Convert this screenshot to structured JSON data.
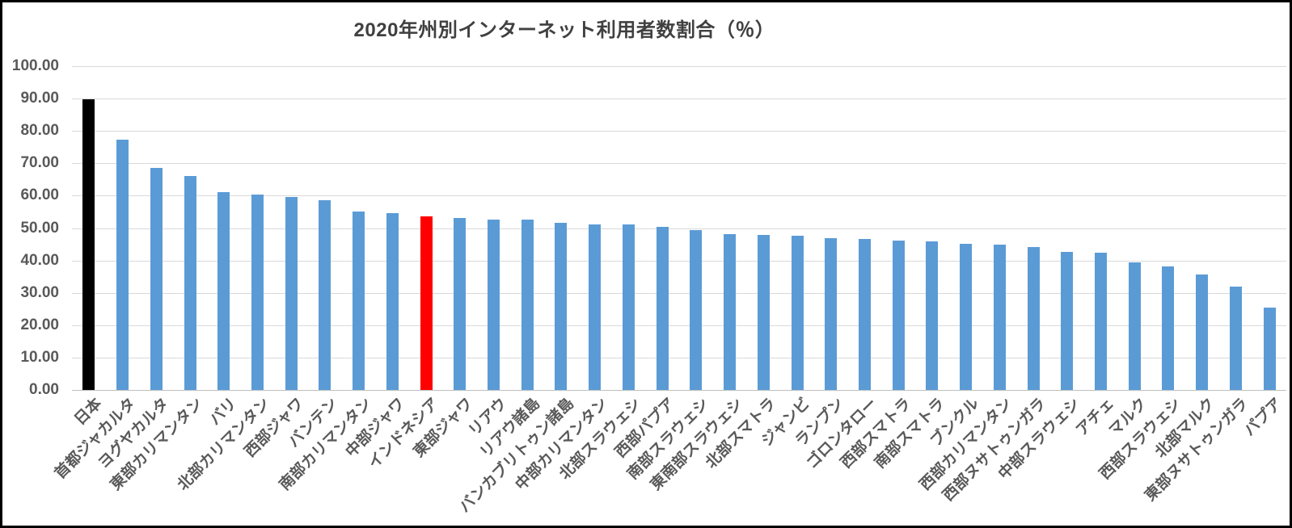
{
  "title": "2020年州別インターネット利用者数割合（％）",
  "chart_data": {
    "type": "bar",
    "title": "2020年州別インターネット利用者数割合（％）",
    "xlabel": "",
    "ylabel": "",
    "ylim": [
      0,
      100
    ],
    "ytick_step": 10,
    "ytick_decimals": 2,
    "grid": true,
    "legend": "none",
    "categories": [
      "日本",
      "首都ジャカルタ",
      "ヨグヤカルタ",
      "東部カリマンタン",
      "バリ",
      "北部カリマンタン",
      "西部ジャワ",
      "バンテン",
      "南部カリマンタン",
      "中部ジャワ",
      "インドネシア",
      "東部ジャワ",
      "リアウ",
      "リアウ諸島",
      "バンカブリトゥン諸島",
      "中部カリマンタン",
      "北部スラウェシ",
      "西部パプア",
      "南部スラウェシ",
      "東南部スラウェシ",
      "北部スマトラ",
      "ジャンビ",
      "ランプン",
      "ゴロンタロー",
      "西部スマトラ",
      "南部スマトラ",
      "ブンクル",
      "西部カリマンタン",
      "西部ヌサトゥンガラ",
      "中部スラウェシ",
      "アチェ",
      "マルク",
      "西部スラウェシ",
      "北部マルク",
      "東部ヌサトゥンガラ",
      "パプア"
    ],
    "values": [
      89.8,
      77.4,
      68.5,
      66.1,
      61.0,
      60.3,
      59.7,
      58.5,
      55.2,
      54.7,
      53.7,
      53.2,
      52.7,
      52.6,
      51.6,
      51.2,
      51.0,
      50.3,
      49.4,
      48.2,
      47.9,
      47.6,
      46.9,
      46.6,
      46.2,
      45.9,
      45.2,
      44.9,
      44.2,
      42.6,
      42.3,
      39.3,
      38.1,
      35.7,
      31.9,
      25.4
    ],
    "default_bar_color": "#5B9BD5",
    "color_overrides": {
      "0": "#000000",
      "10": "#FF0000"
    }
  },
  "colors": {
    "accent_blue": "#5B9BD5",
    "highlight_red": "#FF0000",
    "highlight_black": "#000000",
    "gridline": "#D9D9D9",
    "axis_line": "#BFBFBF",
    "title_text": "#404040",
    "axis_text": "#595959",
    "background": "#FFFFFF",
    "border": "#000000"
  }
}
